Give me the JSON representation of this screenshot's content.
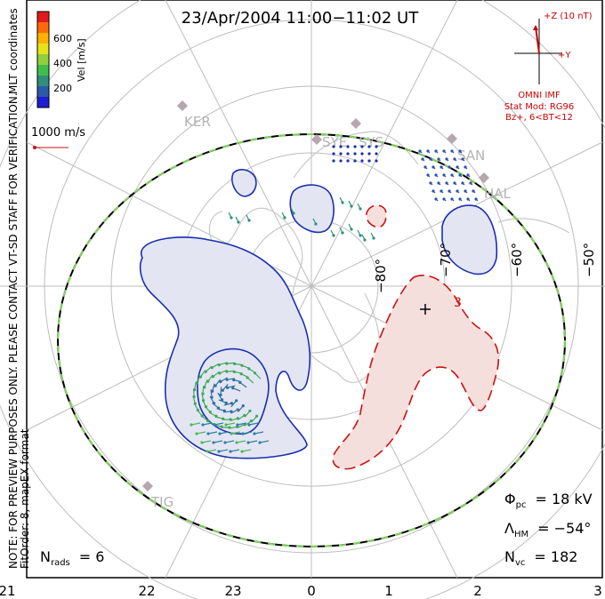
{
  "title": "23/Apr/2004 11:00−11:02 UT",
  "coordinates_label": "MLT coordinates",
  "note_line1": "NOTE: FOR PREVIEW PURPOSES ONLY. PLEASE CONTACT VT-SD STAFF FOR VERIFICATION.",
  "note_line2": "FitOrder: 8, mapEX format",
  "colorbar": {
    "label": "Vel [m/s]",
    "ticks": [
      "600",
      "400",
      "200"
    ],
    "colors": [
      "#e31a1c",
      "#fc6a0a",
      "#ffb000",
      "#e6e21a",
      "#8fd03d",
      "#3fbf4a",
      "#2e8f7a",
      "#2d5aa8",
      "#1d1dd4"
    ]
  },
  "ref_vector_label": "1000 m/s",
  "imf": {
    "z_label": "+Z (10 nT)",
    "y_label": "+Y",
    "source": "OMNI IMF",
    "model_line1": "Stat Mod: RG96",
    "model_line2": "Bz+, 6<BT<12"
  },
  "mlt_ticks": [
    "21",
    "22",
    "23",
    "0",
    "1",
    "2",
    "3"
  ],
  "lat_labels": [
    "−80°",
    "−70°",
    "−60°",
    "−50°"
  ],
  "stations": [
    "KER",
    "SYE",
    "SYS",
    "SAN",
    "HAL",
    "TIG"
  ],
  "stats": {
    "phi_symbol": "Φ",
    "phi_sub": "pc",
    "phi_value": "= 18 kV",
    "lambda_symbol": "Λ",
    "lambda_sub": "HM",
    "lambda_value": "= −54°",
    "nvc_symbol": "N",
    "nvc_sub": "vc",
    "nvc_value": "= 182",
    "nrads_symbol": "N",
    "nrads_sub": "rads",
    "nrads_value": "= 6"
  },
  "contour_label": "3",
  "colors": {
    "positive_fill": "#e3e6f2",
    "positive_line": "#1a2fb0",
    "negative_fill": "#f5dfdc",
    "negative_line": "#cc1111",
    "grid": "#bbbbbb",
    "hmb_dash": "#7fd35a"
  }
}
